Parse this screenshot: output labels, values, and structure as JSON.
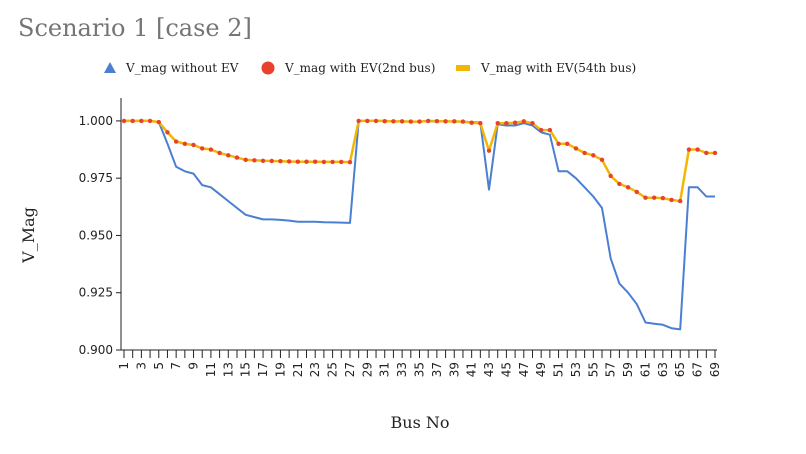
{
  "chart_data": {
    "type": "line",
    "title": "Scenario 1 [case 2]",
    "xlabel": "Bus No",
    "ylabel": "V_Mag",
    "ylim": [
      0.9,
      1.01
    ],
    "yticks": [
      "0.900",
      "0.925",
      "0.950",
      "0.975",
      "1.000"
    ],
    "x": [
      1,
      2,
      3,
      4,
      5,
      6,
      7,
      8,
      9,
      10,
      11,
      12,
      13,
      14,
      15,
      16,
      17,
      18,
      19,
      20,
      21,
      22,
      23,
      24,
      25,
      26,
      27,
      28,
      29,
      30,
      31,
      32,
      33,
      34,
      35,
      36,
      37,
      38,
      39,
      40,
      41,
      42,
      43,
      44,
      45,
      46,
      47,
      48,
      49,
      50,
      51,
      52,
      53,
      54,
      55,
      56,
      57,
      58,
      59,
      60,
      61,
      62,
      63,
      64,
      65,
      66,
      67,
      68,
      69
    ],
    "xtick_labels": [
      "1",
      "3",
      "5",
      "7",
      "9",
      "11",
      "13",
      "15",
      "17",
      "19",
      "21",
      "23",
      "25",
      "27",
      "29",
      "31",
      "33",
      "35",
      "37",
      "39",
      "41",
      "43",
      "45",
      "47",
      "49",
      "51",
      "53",
      "55",
      "57",
      "59",
      "61",
      "63",
      "65",
      "67",
      "69"
    ],
    "legend_position": "top",
    "series": [
      {
        "name": "V_mag without EV",
        "marker": "triangle",
        "color": "#4a7fd1",
        "values": [
          1.0,
          1.0,
          1.0,
          1.0,
          0.9995,
          0.99,
          0.98,
          0.978,
          0.977,
          0.972,
          0.971,
          0.968,
          0.965,
          0.962,
          0.959,
          0.958,
          0.957,
          0.957,
          0.9568,
          0.9565,
          0.956,
          0.956,
          0.956,
          0.9558,
          0.9557,
          0.9556,
          0.9555,
          1.0,
          1.0,
          1.0,
          1.0,
          0.9998,
          0.9998,
          0.9997,
          0.9997,
          0.9998,
          0.9998,
          0.9998,
          0.9997,
          0.9997,
          0.9995,
          0.9993,
          0.97,
          0.9985,
          0.998,
          0.998,
          0.999,
          0.998,
          0.995,
          0.994,
          0.978,
          0.978,
          0.975,
          0.971,
          0.967,
          0.962,
          0.94,
          0.929,
          0.925,
          0.92,
          0.912,
          0.9115,
          0.911,
          0.9095,
          0.909,
          0.971,
          0.971,
          0.967,
          0.967
        ]
      },
      {
        "name": "V_mag with EV(2nd bus)",
        "marker": "circle",
        "color": "#e8412e",
        "values": [
          1.0,
          1.0,
          1.0,
          1.0,
          0.9995,
          0.995,
          0.991,
          0.99,
          0.9895,
          0.988,
          0.9875,
          0.986,
          0.985,
          0.984,
          0.983,
          0.9828,
          0.9826,
          0.9825,
          0.9824,
          0.9823,
          0.9822,
          0.9822,
          0.9822,
          0.9821,
          0.9821,
          0.9821,
          0.982,
          1.0,
          1.0,
          1.0,
          0.9999,
          0.9998,
          0.9998,
          0.9997,
          0.9997,
          1.0,
          0.9999,
          0.9998,
          0.9998,
          0.9997,
          0.9992,
          0.999,
          0.987,
          0.999,
          0.999,
          0.9992,
          0.9998,
          0.999,
          0.996,
          0.996,
          0.99,
          0.99,
          0.988,
          0.986,
          0.985,
          0.983,
          0.976,
          0.9725,
          0.971,
          0.969,
          0.9665,
          0.9665,
          0.9663,
          0.9655,
          0.965,
          0.9875,
          0.9875,
          0.986,
          0.986
        ]
      },
      {
        "name": "V_mag with EV(54th bus)",
        "marker": "line",
        "color": "#f2b705",
        "values": [
          1.0,
          1.0,
          1.0,
          1.0,
          0.9995,
          0.995,
          0.991,
          0.99,
          0.9895,
          0.988,
          0.9875,
          0.986,
          0.985,
          0.984,
          0.983,
          0.9828,
          0.9826,
          0.9825,
          0.9824,
          0.9823,
          0.9822,
          0.9822,
          0.9822,
          0.9821,
          0.9821,
          0.9821,
          0.982,
          1.0,
          1.0,
          1.0,
          0.9999,
          0.9998,
          0.9998,
          0.9997,
          0.9997,
          1.0,
          0.9999,
          0.9998,
          0.9998,
          0.9997,
          0.9992,
          0.999,
          0.987,
          0.999,
          0.999,
          0.9992,
          0.9998,
          0.999,
          0.996,
          0.996,
          0.99,
          0.99,
          0.988,
          0.986,
          0.985,
          0.983,
          0.976,
          0.9725,
          0.971,
          0.969,
          0.9665,
          0.9665,
          0.9663,
          0.9655,
          0.965,
          0.9875,
          0.9875,
          0.986,
          0.986
        ]
      }
    ]
  }
}
